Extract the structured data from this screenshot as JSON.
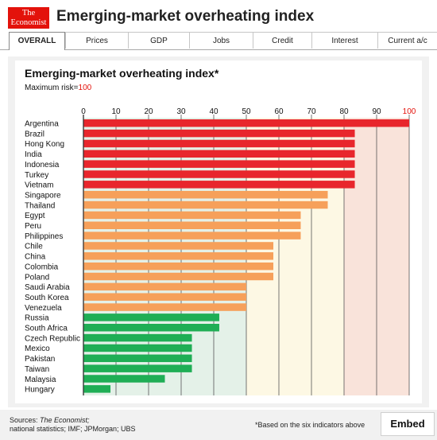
{
  "brand": {
    "logo_line1": "The",
    "logo_line2": "Economist"
  },
  "header": {
    "title": "Emerging-market overheating index"
  },
  "tabs": [
    {
      "label": "OVERALL",
      "active": true
    },
    {
      "label": "Prices"
    },
    {
      "label": "GDP"
    },
    {
      "label": "Jobs"
    },
    {
      "label": "Credit"
    },
    {
      "label": "Interest"
    },
    {
      "label": "Current a/c"
    }
  ],
  "chart_data": {
    "type": "bar",
    "orientation": "horizontal",
    "title": "Emerging-market overheating index*",
    "subtitle_prefix": "Maximum risk=",
    "subtitle_value": "100",
    "xlim": [
      0,
      100
    ],
    "xticks": [
      "0",
      "10",
      "20",
      "30",
      "40",
      "50",
      "60",
      "70",
      "80",
      "90",
      "100"
    ],
    "grid": true,
    "categories": [
      "Argentina",
      "Brazil",
      "Hong Kong",
      "India",
      "Indonesia",
      "Turkey",
      "Vietnam",
      "Singapore",
      "Thailand",
      "Egypt",
      "Peru",
      "Philippines",
      "Chile",
      "China",
      "Colombia",
      "Poland",
      "Saudi Arabia",
      "South Korea",
      "Venezuela",
      "Russia",
      "South Africa",
      "Czech Republic",
      "Mexico",
      "Pakistan",
      "Taiwan",
      "Malaysia",
      "Hungary"
    ],
    "values": [
      100,
      83.3,
      83.3,
      83.3,
      83.3,
      83.3,
      83.3,
      75,
      75,
      66.7,
      66.7,
      66.7,
      58.3,
      58.3,
      58.3,
      58.3,
      50,
      50,
      50,
      41.7,
      41.7,
      33.3,
      33.3,
      33.3,
      33.3,
      25,
      8.3
    ],
    "risk_bands": [
      {
        "from": 0,
        "to": 50,
        "color": "#e4f1e8"
      },
      {
        "from": 50,
        "to": 80,
        "color": "#fdf8e4"
      },
      {
        "from": 80,
        "to": 100,
        "color": "#f9e3da"
      }
    ],
    "bar_colors": {
      "high": "#e8262c",
      "medium": "#f6a05a",
      "low": "#1fae55"
    },
    "highlight_tick_color": "#e3120b"
  },
  "footer": {
    "sources_label": "Sources: ",
    "sources_em": "The Economist;",
    "sources_line2": "national statistics; IMF; JPMorgan; UBS",
    "footnote": "*Based on the six indicators above",
    "embed_label": "Embed"
  }
}
